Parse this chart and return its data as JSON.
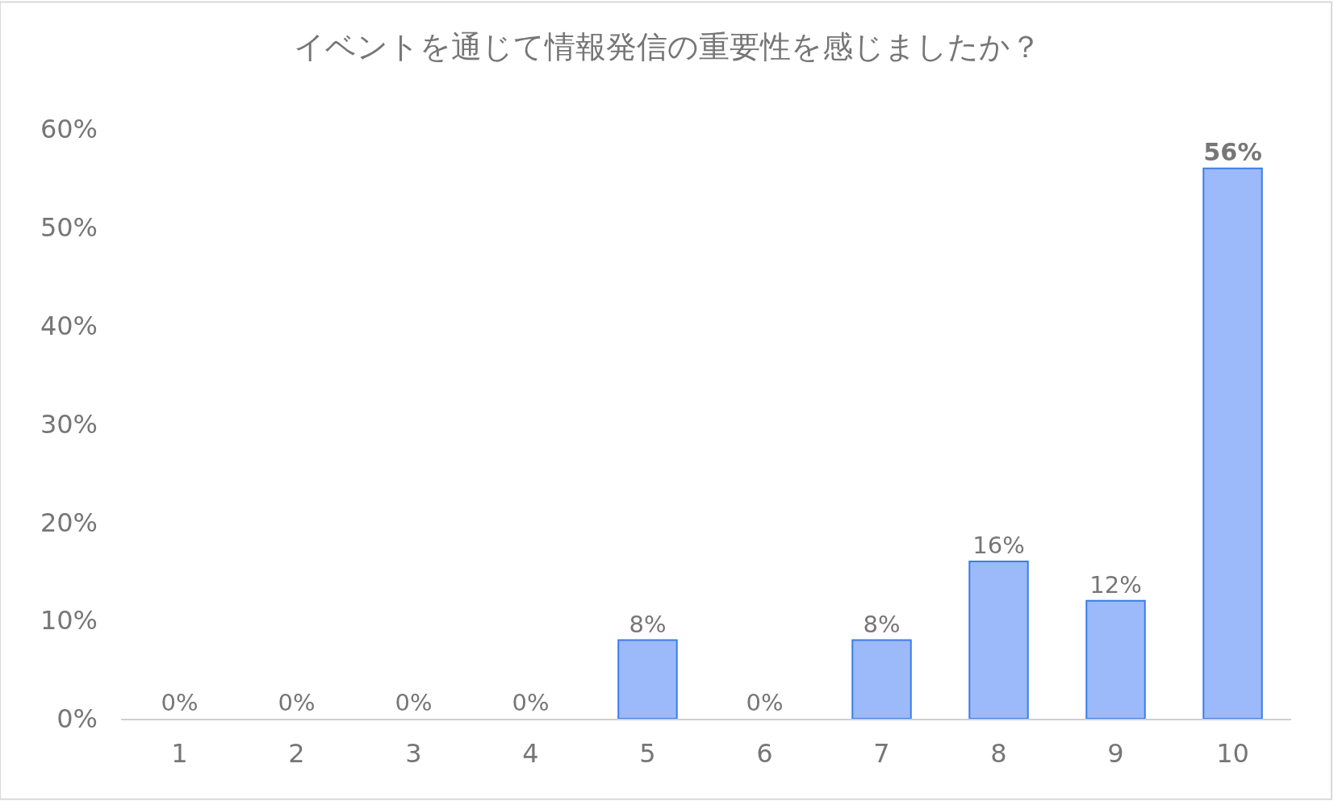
{
  "chart_data": {
    "type": "bar",
    "title": "イベントを通じて情報発信の重要性を感じましたか？",
    "categories": [
      "1",
      "2",
      "3",
      "4",
      "5",
      "6",
      "7",
      "8",
      "9",
      "10"
    ],
    "values": [
      0,
      0,
      0,
      0,
      8,
      0,
      8,
      16,
      12,
      56
    ],
    "value_labels": [
      "0%",
      "0%",
      "0%",
      "0%",
      "8%",
      "0%",
      "8%",
      "16%",
      "12%",
      "56%"
    ],
    "color": "#9cb9fa",
    "ylim": [
      0,
      60
    ],
    "yticks": [
      {
        "value": 0,
        "label": "0%"
      },
      {
        "value": 10,
        "label": "10%"
      },
      {
        "value": 20,
        "label": "20%"
      },
      {
        "value": 30,
        "label": "30%"
      },
      {
        "value": 40,
        "label": "40%"
      },
      {
        "value": 50,
        "label": "50%"
      },
      {
        "value": 60,
        "label": "60%"
      }
    ],
    "legend": false
  }
}
